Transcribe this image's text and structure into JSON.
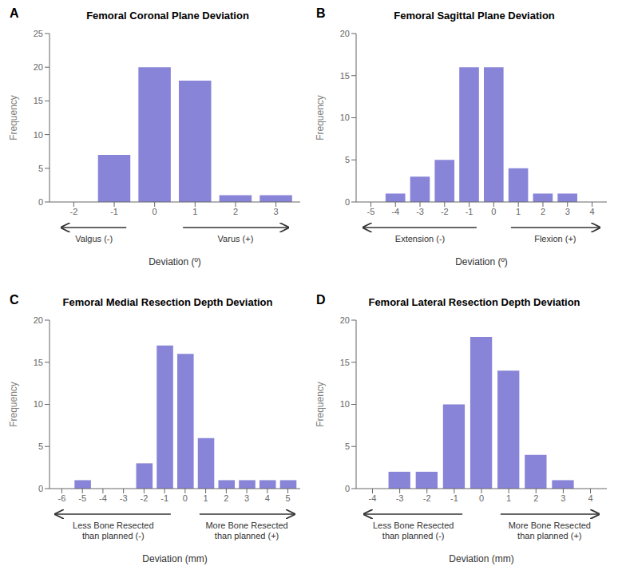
{
  "chart_data": [
    {
      "type": "bar",
      "title": "Femoral Coronal Plane Deviation",
      "x_label": "Deviation (º)",
      "y_label": "Frequency",
      "x": [
        -2,
        -1,
        0,
        1,
        2,
        3
      ],
      "values": [
        0,
        7,
        20,
        18,
        1,
        1
      ],
      "color": "#8884d8",
      "xlim": [
        -2.6,
        3.6
      ],
      "xticks": [
        -2,
        -1,
        0,
        1,
        2,
        3
      ],
      "ylim": [
        0,
        25
      ],
      "yticks": [
        0,
        5,
        10,
        15,
        20,
        25
      ],
      "grid": false,
      "annotations": [
        {
          "text": "A"
        },
        {
          "text": "Valgus (-)",
          "x_range": [
            -2,
            -1
          ],
          "arrow": "left"
        },
        {
          "text": "Varus (+)",
          "x_range": [
            1,
            3
          ],
          "arrow": "right"
        }
      ]
    },
    {
      "type": "bar",
      "title": "Femoral Sagittal Plane Deviation",
      "x_label": "Deviation (º)",
      "y_label": "Frequency",
      "x": [
        -5,
        -4,
        -3,
        -2,
        -1,
        0,
        1,
        2,
        3,
        4
      ],
      "values": [
        0,
        1,
        3,
        5,
        16,
        16,
        4,
        1,
        1,
        0
      ],
      "color": "#8884d8",
      "xlim": [
        -5.6,
        4.6
      ],
      "xticks": [
        -5,
        -4,
        -3,
        -2,
        -1,
        0,
        1,
        2,
        3,
        4
      ],
      "ylim": [
        0,
        20
      ],
      "yticks": [
        0,
        5,
        10,
        15,
        20
      ],
      "grid": false,
      "annotations": [
        {
          "text": "B"
        },
        {
          "text": "Extension (-)",
          "x_range": [
            -5,
            -1
          ],
          "arrow": "left"
        },
        {
          "text": "Flexion (+)",
          "x_range": [
            1,
            4
          ],
          "arrow": "right"
        }
      ]
    },
    {
      "type": "bar",
      "title": "Femoral Medial Resection Depth Deviation",
      "x_label": "Deviation (mm)",
      "y_label": "Frequency",
      "x": [
        -6,
        -5,
        -4,
        -3,
        -2,
        -1,
        0,
        1,
        2,
        3,
        4,
        5
      ],
      "values": [
        0,
        1,
        0,
        0,
        3,
        17,
        16,
        6,
        1,
        1,
        1,
        1
      ],
      "color": "#8884d8",
      "xlim": [
        -6.6,
        5.6
      ],
      "xticks": [
        -6,
        -5,
        -4,
        -3,
        -2,
        -1,
        0,
        1,
        2,
        3,
        4,
        5
      ],
      "ylim": [
        0,
        20
      ],
      "yticks": [
        0,
        5,
        10,
        15,
        20
      ],
      "grid": false,
      "annotations": [
        {
          "text": "C"
        },
        {
          "text": "Less Bone Resected\nthan planned (-)",
          "x_range": [
            -6,
            -1
          ],
          "arrow": "left"
        },
        {
          "text": "More Bone Resected\nthan planned (+)",
          "x_range": [
            1,
            5
          ],
          "arrow": "right"
        }
      ]
    },
    {
      "type": "bar",
      "title": "Femoral Lateral Resection Depth Deviation",
      "x_label": "Deviation (mm)",
      "y_label": "Frequency",
      "x": [
        -4,
        -3,
        -2,
        -1,
        0,
        1,
        2,
        3,
        4
      ],
      "values": [
        0,
        2,
        2,
        10,
        18,
        14,
        4,
        1,
        0
      ],
      "color": "#8884d8",
      "xlim": [
        -4.6,
        4.6
      ],
      "xticks": [
        -4,
        -3,
        -2,
        -1,
        0,
        1,
        2,
        3,
        4
      ],
      "ylim": [
        0,
        20
      ],
      "yticks": [
        0,
        5,
        10,
        15,
        20
      ],
      "grid": false,
      "annotations": [
        {
          "text": "D"
        },
        {
          "text": "Less Bone Resected\nthan planned (-)",
          "x_range": [
            -4,
            -1
          ],
          "arrow": "left"
        },
        {
          "text": "More Bone Resected\nthan planned (+)",
          "x_range": [
            1,
            4
          ],
          "arrow": "right"
        }
      ]
    }
  ]
}
